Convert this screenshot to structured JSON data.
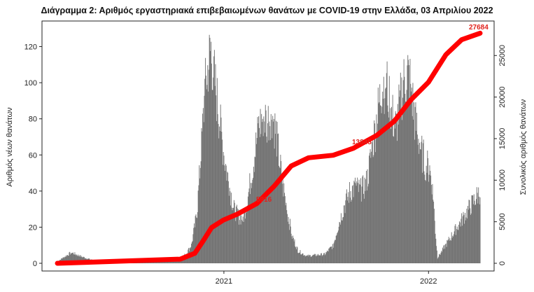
{
  "chart_data": {
    "type": "bar",
    "title": "Διάγραμμα 2: Αριθμός εργαστηριακά επιβεβαιωμένων θανάτων με COVID-19 στην Ελλάδα, 03 Απριλίου 2022",
    "ylabel_left": "Αριθμός νέων θανάτων",
    "ylabel_right": "Συνολικός αριθμός θανάτων",
    "xticks": [
      "2021",
      "2022"
    ],
    "yticks_left": [
      "0",
      "20",
      "40",
      "60",
      "80",
      "100",
      "120"
    ],
    "yticks_right": [
      "0",
      "5000",
      "10000",
      "15000",
      "20000",
      "25000"
    ],
    "ylim_left": [
      0,
      133
    ],
    "ylim_right": [
      0,
      28900
    ],
    "bar_color": "#737373",
    "line_color": "#ff0000",
    "annotations": [
      "5916",
      "13845",
      "27684"
    ],
    "bar_segments": [
      {
        "from": "2020-03-10",
        "to": "2020-10-15",
        "points": [
          [
            0,
            1
          ],
          [
            10,
            3
          ],
          [
            25,
            6
          ],
          [
            40,
            4
          ],
          [
            60,
            2
          ],
          [
            90,
            1
          ],
          [
            150,
            1
          ],
          [
            219,
            3
          ]
        ]
      },
      {
        "from": "2020-10-15",
        "to": "2021-06-30",
        "points": [
          [
            0,
            3
          ],
          [
            10,
            5
          ],
          [
            20,
            10
          ],
          [
            30,
            28
          ],
          [
            38,
            65
          ],
          [
            44,
            95
          ],
          [
            50,
            110
          ],
          [
            55,
            118
          ],
          [
            60,
            105
          ],
          [
            68,
            85
          ],
          [
            78,
            60
          ],
          [
            88,
            42
          ],
          [
            96,
            30
          ],
          [
            104,
            26
          ],
          [
            112,
            25
          ],
          [
            120,
            35
          ],
          [
            130,
            55
          ],
          [
            140,
            75
          ],
          [
            148,
            82
          ],
          [
            155,
            78
          ],
          [
            163,
            85
          ],
          [
            171,
            72
          ],
          [
            180,
            50
          ],
          [
            190,
            30
          ],
          [
            200,
            15
          ],
          [
            210,
            7
          ],
          [
            225,
            4
          ],
          [
            258,
            5
          ]
        ]
      },
      {
        "from": "2021-06-30",
        "to": "2022-04-03",
        "points": [
          [
            0,
            5
          ],
          [
            15,
            10
          ],
          [
            25,
            22
          ],
          [
            35,
            32
          ],
          [
            45,
            40
          ],
          [
            55,
            42
          ],
          [
            65,
            40
          ],
          [
            75,
            45
          ],
          [
            85,
            65
          ],
          [
            95,
            85
          ],
          [
            102,
            98
          ],
          [
            108,
            102
          ],
          [
            114,
            95
          ],
          [
            120,
            82
          ],
          [
            127,
            75
          ],
          [
            134,
            90
          ],
          [
            141,
            100
          ],
          [
            148,
            105
          ],
          [
            154,
            98
          ],
          [
            160,
            80
          ],
          [
            166,
            72
          ],
          [
            172,
            62
          ],
          [
            180,
            55
          ],
          [
            187,
            52
          ],
          [
            192,
            44
          ],
          [
            197,
            18
          ],
          [
            201,
            3
          ],
          [
            277,
            40
          ]
        ]
      }
    ],
    "cumulative": [
      {
        "date": "2020-03-10",
        "y": 0
      },
      {
        "date": "2020-10-15",
        "y": 500
      },
      {
        "date": "2020-11-10",
        "y": 1200
      },
      {
        "date": "2020-11-25",
        "y": 2700
      },
      {
        "date": "2020-12-10",
        "y": 4300
      },
      {
        "date": "2020-12-31",
        "y": 5200
      },
      {
        "date": "2021-01-25",
        "y": 5916
      },
      {
        "date": "2021-03-01",
        "y": 7200
      },
      {
        "date": "2021-04-01",
        "y": 9300
      },
      {
        "date": "2021-05-01",
        "y": 11700
      },
      {
        "date": "2021-06-01",
        "y": 12700
      },
      {
        "date": "2021-07-15",
        "y": 13000
      },
      {
        "date": "2021-08-20",
        "y": 13845
      },
      {
        "date": "2021-10-01",
        "y": 15400
      },
      {
        "date": "2021-11-01",
        "y": 17100
      },
      {
        "date": "2021-12-01",
        "y": 19700
      },
      {
        "date": "2022-01-01",
        "y": 21800
      },
      {
        "date": "2022-02-01",
        "y": 25100
      },
      {
        "date": "2022-03-01",
        "y": 26900
      },
      {
        "date": "2022-04-03",
        "y": 27684
      }
    ]
  }
}
